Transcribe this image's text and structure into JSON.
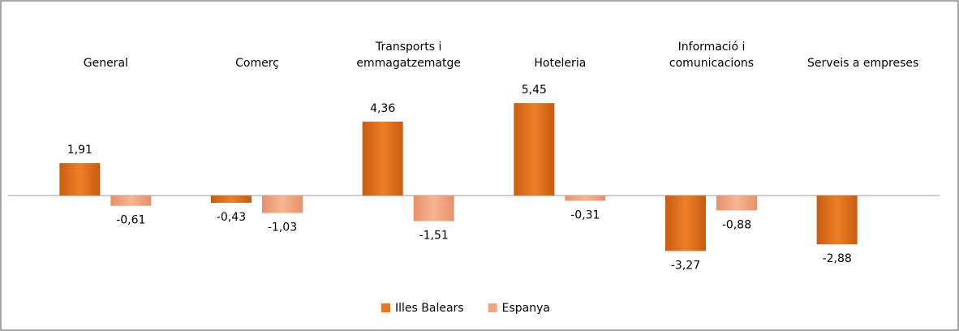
{
  "chart_data": {
    "type": "bar",
    "categories": [
      [
        "General"
      ],
      [
        "Comerç"
      ],
      [
        "Transports i",
        "emmagatzematge"
      ],
      [
        "Hoteleria"
      ],
      [
        "Informació i",
        "comunicacions"
      ],
      [
        "Serveis a empreses"
      ]
    ],
    "series": [
      {
        "name": "Illes Balears",
        "color": "#e8771f",
        "values": [
          1.91,
          -0.43,
          4.36,
          5.45,
          -3.27,
          -2.88
        ],
        "value_labels": [
          "1,91",
          "-0,43",
          "4,36",
          "5,45",
          "-3,27",
          "-2,88"
        ]
      },
      {
        "name": "Espanya",
        "color": "#f2a47c",
        "values": [
          -0.61,
          -1.03,
          -1.51,
          -0.31,
          -0.88,
          null
        ],
        "value_labels": [
          "-0,61",
          "-1,03",
          "-1,51",
          "-0,31",
          "-0,88",
          null
        ]
      }
    ],
    "legend": "bottom"
  }
}
